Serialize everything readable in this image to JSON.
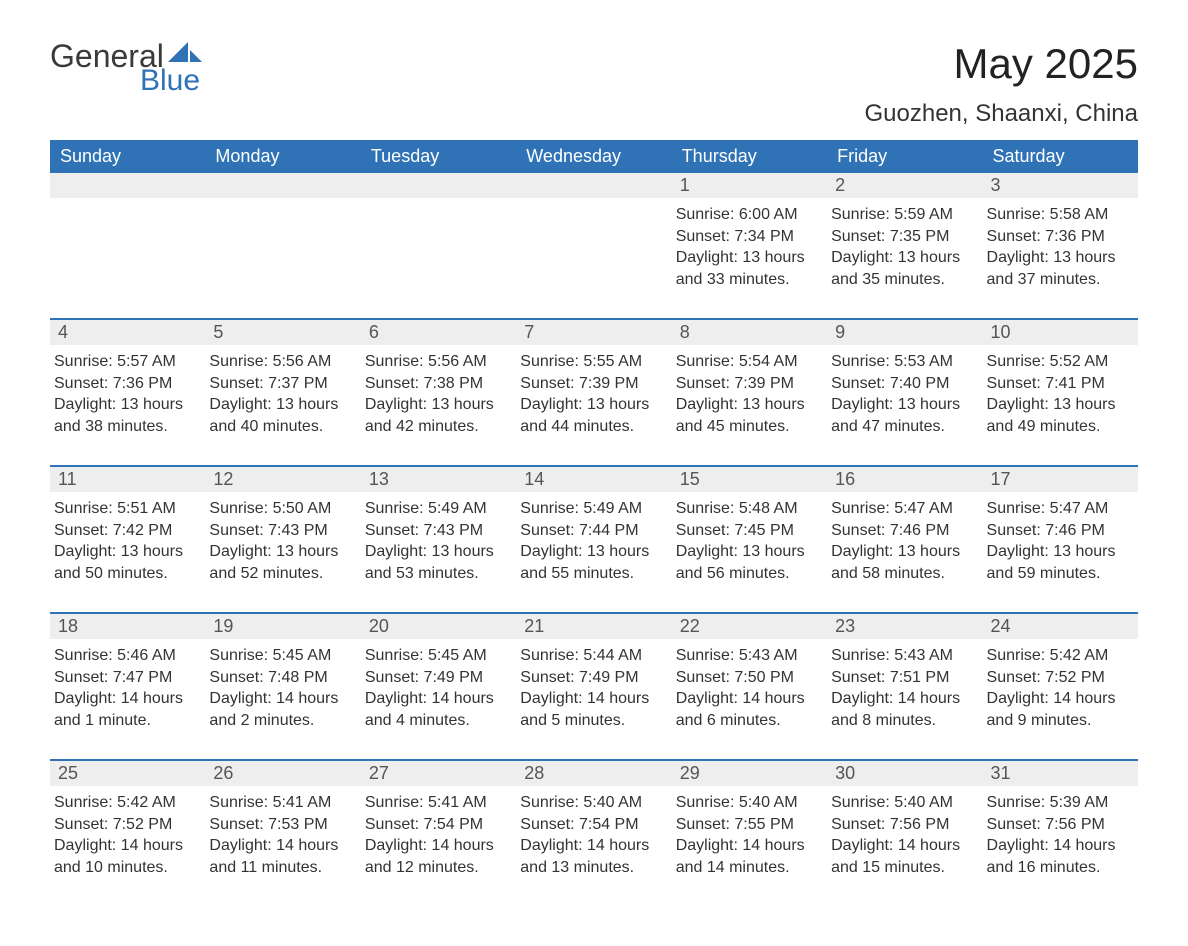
{
  "logo": {
    "general": "General",
    "blue": "Blue"
  },
  "title": "May 2025",
  "location": "Guozhen, Shaanxi, China",
  "colors": {
    "header_bg": "#2f72b6",
    "header_text": "#ffffff",
    "daynum_bg": "#eeeeee",
    "daynum_text": "#555555",
    "body_text": "#333333",
    "rule": "#2f72b6"
  },
  "weekdays": [
    "Sunday",
    "Monday",
    "Tuesday",
    "Wednesday",
    "Thursday",
    "Friday",
    "Saturday"
  ],
  "weeks": [
    [
      {
        "n": "",
        "lines": []
      },
      {
        "n": "",
        "lines": []
      },
      {
        "n": "",
        "lines": []
      },
      {
        "n": "",
        "lines": []
      },
      {
        "n": "1",
        "lines": [
          "Sunrise: 6:00 AM",
          "Sunset: 7:34 PM",
          "Daylight: 13 hours and 33 minutes."
        ]
      },
      {
        "n": "2",
        "lines": [
          "Sunrise: 5:59 AM",
          "Sunset: 7:35 PM",
          "Daylight: 13 hours and 35 minutes."
        ]
      },
      {
        "n": "3",
        "lines": [
          "Sunrise: 5:58 AM",
          "Sunset: 7:36 PM",
          "Daylight: 13 hours and 37 minutes."
        ]
      }
    ],
    [
      {
        "n": "4",
        "lines": [
          "Sunrise: 5:57 AM",
          "Sunset: 7:36 PM",
          "Daylight: 13 hours and 38 minutes."
        ]
      },
      {
        "n": "5",
        "lines": [
          "Sunrise: 5:56 AM",
          "Sunset: 7:37 PM",
          "Daylight: 13 hours and 40 minutes."
        ]
      },
      {
        "n": "6",
        "lines": [
          "Sunrise: 5:56 AM",
          "Sunset: 7:38 PM",
          "Daylight: 13 hours and 42 minutes."
        ]
      },
      {
        "n": "7",
        "lines": [
          "Sunrise: 5:55 AM",
          "Sunset: 7:39 PM",
          "Daylight: 13 hours and 44 minutes."
        ]
      },
      {
        "n": "8",
        "lines": [
          "Sunrise: 5:54 AM",
          "Sunset: 7:39 PM",
          "Daylight: 13 hours and 45 minutes."
        ]
      },
      {
        "n": "9",
        "lines": [
          "Sunrise: 5:53 AM",
          "Sunset: 7:40 PM",
          "Daylight: 13 hours and 47 minutes."
        ]
      },
      {
        "n": "10",
        "lines": [
          "Sunrise: 5:52 AM",
          "Sunset: 7:41 PM",
          "Daylight: 13 hours and 49 minutes."
        ]
      }
    ],
    [
      {
        "n": "11",
        "lines": [
          "Sunrise: 5:51 AM",
          "Sunset: 7:42 PM",
          "Daylight: 13 hours and 50 minutes."
        ]
      },
      {
        "n": "12",
        "lines": [
          "Sunrise: 5:50 AM",
          "Sunset: 7:43 PM",
          "Daylight: 13 hours and 52 minutes."
        ]
      },
      {
        "n": "13",
        "lines": [
          "Sunrise: 5:49 AM",
          "Sunset: 7:43 PM",
          "Daylight: 13 hours and 53 minutes."
        ]
      },
      {
        "n": "14",
        "lines": [
          "Sunrise: 5:49 AM",
          "Sunset: 7:44 PM",
          "Daylight: 13 hours and 55 minutes."
        ]
      },
      {
        "n": "15",
        "lines": [
          "Sunrise: 5:48 AM",
          "Sunset: 7:45 PM",
          "Daylight: 13 hours and 56 minutes."
        ]
      },
      {
        "n": "16",
        "lines": [
          "Sunrise: 5:47 AM",
          "Sunset: 7:46 PM",
          "Daylight: 13 hours and 58 minutes."
        ]
      },
      {
        "n": "17",
        "lines": [
          "Sunrise: 5:47 AM",
          "Sunset: 7:46 PM",
          "Daylight: 13 hours and 59 minutes."
        ]
      }
    ],
    [
      {
        "n": "18",
        "lines": [
          "Sunrise: 5:46 AM",
          "Sunset: 7:47 PM",
          "Daylight: 14 hours and 1 minute."
        ]
      },
      {
        "n": "19",
        "lines": [
          "Sunrise: 5:45 AM",
          "Sunset: 7:48 PM",
          "Daylight: 14 hours and 2 minutes."
        ]
      },
      {
        "n": "20",
        "lines": [
          "Sunrise: 5:45 AM",
          "Sunset: 7:49 PM",
          "Daylight: 14 hours and 4 minutes."
        ]
      },
      {
        "n": "21",
        "lines": [
          "Sunrise: 5:44 AM",
          "Sunset: 7:49 PM",
          "Daylight: 14 hours and 5 minutes."
        ]
      },
      {
        "n": "22",
        "lines": [
          "Sunrise: 5:43 AM",
          "Sunset: 7:50 PM",
          "Daylight: 14 hours and 6 minutes."
        ]
      },
      {
        "n": "23",
        "lines": [
          "Sunrise: 5:43 AM",
          "Sunset: 7:51 PM",
          "Daylight: 14 hours and 8 minutes."
        ]
      },
      {
        "n": "24",
        "lines": [
          "Sunrise: 5:42 AM",
          "Sunset: 7:52 PM",
          "Daylight: 14 hours and 9 minutes."
        ]
      }
    ],
    [
      {
        "n": "25",
        "lines": [
          "Sunrise: 5:42 AM",
          "Sunset: 7:52 PM",
          "Daylight: 14 hours and 10 minutes."
        ]
      },
      {
        "n": "26",
        "lines": [
          "Sunrise: 5:41 AM",
          "Sunset: 7:53 PM",
          "Daylight: 14 hours and 11 minutes."
        ]
      },
      {
        "n": "27",
        "lines": [
          "Sunrise: 5:41 AM",
          "Sunset: 7:54 PM",
          "Daylight: 14 hours and 12 minutes."
        ]
      },
      {
        "n": "28",
        "lines": [
          "Sunrise: 5:40 AM",
          "Sunset: 7:54 PM",
          "Daylight: 14 hours and 13 minutes."
        ]
      },
      {
        "n": "29",
        "lines": [
          "Sunrise: 5:40 AM",
          "Sunset: 7:55 PM",
          "Daylight: 14 hours and 14 minutes."
        ]
      },
      {
        "n": "30",
        "lines": [
          "Sunrise: 5:40 AM",
          "Sunset: 7:56 PM",
          "Daylight: 14 hours and 15 minutes."
        ]
      },
      {
        "n": "31",
        "lines": [
          "Sunrise: 5:39 AM",
          "Sunset: 7:56 PM",
          "Daylight: 14 hours and 16 minutes."
        ]
      }
    ]
  ]
}
